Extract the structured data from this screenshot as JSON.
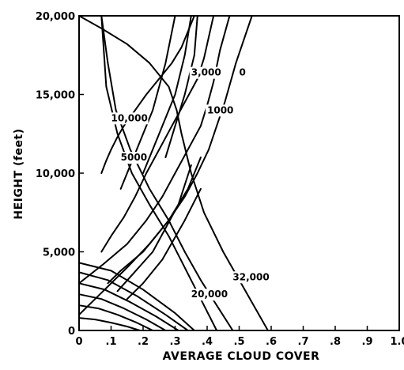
{
  "chart_data": {
    "type": "line",
    "xlabel": "AVERAGE CLOUD COVER",
    "ylabel": "HEIGHT (feet)",
    "xlim": [
      0,
      1.0
    ],
    "ylim": [
      0,
      20000
    ],
    "x_ticks": [
      "0",
      ".1",
      ".2",
      ".3",
      ".4",
      ".5",
      ".6",
      ".7",
      ".8",
      ".9",
      "1.0"
    ],
    "y_ticks": [
      "0",
      "5,000",
      "10,000",
      "15,000",
      "20,000"
    ],
    "grid": false,
    "legend": "none",
    "series": [
      {
        "name": "0",
        "x": [
          0.59,
          0.52,
          0.45,
          0.39,
          0.35,
          0.32,
          0.305,
          0.28,
          0.22,
          0.15,
          0.07,
          0.0
        ],
        "y": [
          0,
          2500,
          5000,
          7500,
          10000,
          12500,
          14000,
          15500,
          17000,
          18200,
          19200,
          20000
        ]
      },
      {
        "name": "1000",
        "x": [
          0.0,
          0.075,
          0.15,
          0.22,
          0.28,
          0.33,
          0.37,
          0.405,
          0.43,
          0.455,
          0.49,
          0.54
        ],
        "y": [
          1000,
          2500,
          4000,
          5500,
          7000,
          8500,
          10000,
          11500,
          13000,
          14500,
          17000,
          20000
        ]
      },
      {
        "name": "3,000",
        "x": [
          0.0,
          0.075,
          0.15,
          0.21,
          0.26,
          0.3,
          0.34,
          0.38,
          0.4,
          0.42,
          0.44,
          0.47
        ],
        "y": [
          3000,
          4200,
          5500,
          7000,
          8500,
          10000,
          11500,
          13000,
          14300,
          15800,
          17800,
          20000
        ]
      },
      {
        "name": "5000",
        "x": [
          0.07,
          0.1,
          0.14,
          0.175,
          0.21,
          0.25,
          0.29,
          0.33,
          0.37,
          0.39,
          0.42
        ],
        "y": [
          5000,
          6000,
          7200,
          8500,
          10000,
          11500,
          13000,
          14500,
          16000,
          17300,
          20000
        ]
      },
      {
        "name": "10,000",
        "x": [
          0.07,
          0.085,
          0.1,
          0.12,
          0.14,
          0.175,
          0.21,
          0.25,
          0.29,
          0.32,
          0.34,
          0.36
        ],
        "y": [
          10000,
          10800,
          11500,
          12300,
          13000,
          14000,
          15000,
          16000,
          17000,
          18000,
          19000,
          20000
        ]
      },
      {
        "name": "20,000",
        "x": [
          0.48,
          0.43,
          0.38,
          0.33,
          0.28,
          0.22,
          0.16,
          0.115,
          0.09,
          0.07
        ],
        "y": [
          0,
          1600,
          3200,
          5000,
          7000,
          9000,
          11500,
          14000,
          17000,
          20000
        ]
      },
      {
        "name": "32,000",
        "x": [
          0.43,
          0.38,
          0.33,
          0.28,
          0.22,
          0.165,
          0.12,
          0.085,
          0.07
        ],
        "y": [
          0,
          2000,
          4000,
          6000,
          8000,
          10000,
          12500,
          15500,
          20000
        ]
      },
      {
        "x": [
          0.0,
          0.05,
          0.1,
          0.15,
          0.19
        ],
        "y": [
          800,
          700,
          500,
          250,
          0
        ]
      },
      {
        "x": [
          0.0,
          0.06,
          0.12,
          0.18,
          0.23
        ],
        "y": [
          1600,
          1400,
          1000,
          500,
          0
        ]
      },
      {
        "x": [
          0.0,
          0.07,
          0.14,
          0.21,
          0.27
        ],
        "y": [
          2300,
          2000,
          1400,
          700,
          0
        ]
      },
      {
        "x": [
          0.0,
          0.08,
          0.16,
          0.24,
          0.31
        ],
        "y": [
          3000,
          2600,
          1800,
          900,
          0
        ]
      },
      {
        "x": [
          0.0,
          0.09,
          0.18,
          0.27,
          0.34
        ],
        "y": [
          3700,
          3200,
          2200,
          1000,
          0
        ]
      },
      {
        "x": [
          0.0,
          0.1,
          0.2,
          0.3,
          0.36
        ],
        "y": [
          4300,
          3800,
          2600,
          1100,
          0
        ]
      },
      {
        "x": [
          0.09,
          0.13,
          0.2,
          0.28,
          0.34,
          0.38
        ],
        "y": [
          3000,
          3800,
          5000,
          7000,
          9000,
          11000
        ]
      },
      {
        "x": [
          0.12,
          0.16,
          0.23,
          0.31,
          0.35
        ],
        "y": [
          2500,
          3400,
          5000,
          8000,
          10500
        ]
      },
      {
        "x": [
          0.15,
          0.2,
          0.26,
          0.33,
          0.38
        ],
        "y": [
          2000,
          3000,
          4500,
          7000,
          9000
        ]
      },
      {
        "x": [
          0.27,
          0.3,
          0.33,
          0.36,
          0.37
        ],
        "y": [
          11000,
          13000,
          15000,
          17500,
          20000
        ]
      },
      {
        "x": [
          0.2,
          0.25,
          0.3,
          0.33,
          0.35
        ],
        "y": [
          10000,
          12500,
          15000,
          17500,
          20000
        ]
      },
      {
        "x": [
          0.13,
          0.18,
          0.23,
          0.27,
          0.3
        ],
        "y": [
          9000,
          11500,
          14000,
          17000,
          20000
        ]
      }
    ],
    "annotations": [
      {
        "text": "0",
        "x": 0.5,
        "y": 16200
      },
      {
        "text": "1000",
        "x": 0.4,
        "y": 13800
      },
      {
        "text": "3,000",
        "x": 0.35,
        "y": 16200
      },
      {
        "text": "5000",
        "x": 0.13,
        "y": 10800
      },
      {
        "text": "10,000",
        "x": 0.1,
        "y": 13300
      },
      {
        "text": "20,000",
        "x": 0.35,
        "y": 2100
      },
      {
        "text": "32,000",
        "x": 0.48,
        "y": 3200
      }
    ]
  }
}
